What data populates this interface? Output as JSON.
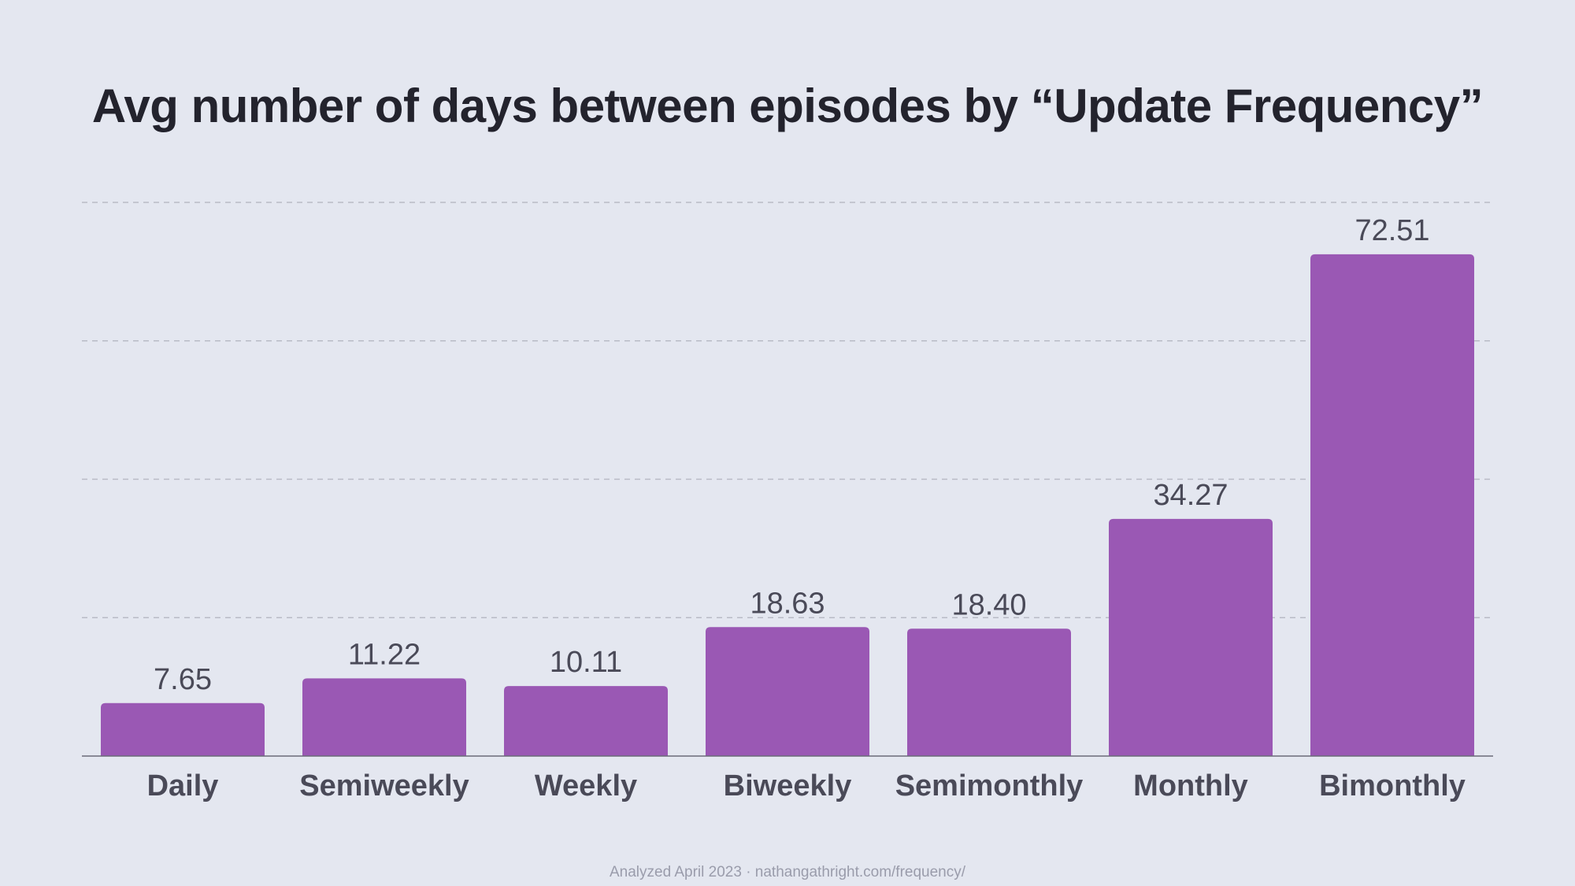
{
  "chart_data": {
    "type": "bar",
    "title": "Avg number of days between episodes by “Update Frequency”",
    "xlabel": "",
    "ylabel": "",
    "categories": [
      "Daily",
      "Semiweekly",
      "Weekly",
      "Biweekly",
      "Semimonthly",
      "Monthly",
      "Bimonthly"
    ],
    "values": [
      7.65,
      11.22,
      10.11,
      18.63,
      18.4,
      34.27,
      72.51
    ],
    "value_labels": [
      "7.65",
      "11.22",
      "10.11",
      "18.63",
      "18.40",
      "34.27",
      "72.51"
    ],
    "ylim": [
      0,
      80
    ],
    "grid_values": [
      20,
      40,
      60,
      80
    ],
    "grid": true,
    "legend": "none",
    "bar_color": "#9a58b4",
    "label_color": "#4a4a58",
    "grid_color": "#b9bbc6"
  },
  "footer": {
    "text": "Analyzed April 2023 · nathangathright.com/frequency/"
  }
}
